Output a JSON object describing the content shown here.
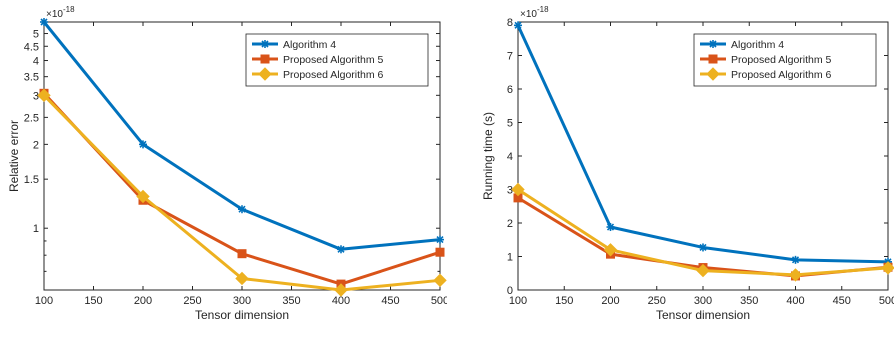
{
  "chart_data": [
    {
      "type": "line",
      "title": "",
      "xlabel": "Tensor dimension",
      "ylabel": "Relative error",
      "y_exponent_label": "×10",
      "y_exponent_power": "-18",
      "x": [
        100,
        200,
        300,
        400,
        500
      ],
      "xticks": [
        "100",
        "150",
        "200",
        "250",
        "300",
        "350",
        "400",
        "450",
        "500"
      ],
      "xlim": [
        100,
        500
      ],
      "y_scale": "log",
      "ylim": [
        0.6,
        5.5
      ],
      "yticks": [
        {
          "value": 1,
          "label": "1"
        },
        {
          "value": 1.5,
          "label": "1.5"
        },
        {
          "value": 2,
          "label": "2"
        },
        {
          "value": 2.5,
          "label": "2.5"
        },
        {
          "value": 3,
          "label": "3"
        },
        {
          "value": 3.5,
          "label": "3.5"
        },
        {
          "value": 4,
          "label": "4"
        },
        {
          "value": 4.5,
          "label": "4.5"
        },
        {
          "value": 5,
          "label": "5"
        }
      ],
      "grid": false,
      "legend_position": "top-right",
      "series": [
        {
          "name": "Algorithm 4",
          "values": [
            5.5,
            2.0,
            1.17,
            0.84,
            0.91
          ],
          "color": "#0072BD",
          "marker": "asterisk"
        },
        {
          "name": "Proposed Algorithm 5",
          "values": [
            3.05,
            1.26,
            0.81,
            0.63,
            0.82
          ],
          "color": "#D95319",
          "marker": "square"
        },
        {
          "name": "Proposed Algorithm 6",
          "values": [
            3.0,
            1.3,
            0.66,
            0.6,
            0.65
          ],
          "color": "#EDB120",
          "marker": "diamond"
        }
      ]
    },
    {
      "type": "line",
      "title": "",
      "xlabel": "Tensor dimension",
      "ylabel": "Running time (s)",
      "y_exponent_label": "×10",
      "y_exponent_power": "-18",
      "x": [
        100,
        200,
        300,
        400,
        500
      ],
      "xticks": [
        "100",
        "150",
        "200",
        "250",
        "300",
        "350",
        "400",
        "450",
        "500"
      ],
      "xlim": [
        100,
        500
      ],
      "y_scale": "linear",
      "ylim": [
        0,
        8
      ],
      "yticks": [
        {
          "value": 0,
          "label": "0"
        },
        {
          "value": 1,
          "label": "1"
        },
        {
          "value": 2,
          "label": "2"
        },
        {
          "value": 3,
          "label": "3"
        },
        {
          "value": 4,
          "label": "4"
        },
        {
          "value": 5,
          "label": "5"
        },
        {
          "value": 6,
          "label": "6"
        },
        {
          "value": 7,
          "label": "7"
        },
        {
          "value": 8,
          "label": "8"
        }
      ],
      "grid": false,
      "legend_position": "top-right",
      "series": [
        {
          "name": "Algorithm 4",
          "values": [
            7.9,
            1.88,
            1.27,
            0.9,
            0.84
          ],
          "color": "#0072BD",
          "marker": "asterisk"
        },
        {
          "name": "Proposed Algorithm 5",
          "values": [
            2.75,
            1.07,
            0.67,
            0.42,
            0.68
          ],
          "color": "#D95319",
          "marker": "square"
        },
        {
          "name": "Proposed Algorithm 6",
          "values": [
            3.0,
            1.2,
            0.58,
            0.45,
            0.66
          ],
          "color": "#EDB120",
          "marker": "diamond"
        }
      ]
    }
  ]
}
